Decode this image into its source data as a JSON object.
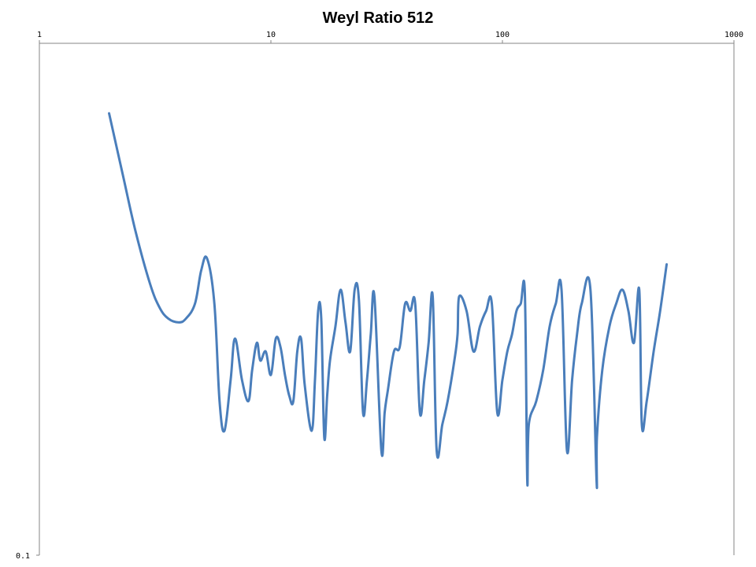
{
  "chart_data": {
    "type": "line",
    "title": "Weyl Ratio 512",
    "xscale": "log",
    "yscale": "log",
    "xlim": [
      1,
      1000
    ],
    "ylim": [
      0.1,
      1
    ],
    "x_ticks": [
      "1",
      "10",
      "100",
      "1000"
    ],
    "y_ticks": [
      "0.1"
    ],
    "x_axis_position": "top",
    "grid": false,
    "legend": "none",
    "series_color": "#4a7ebb",
    "series": [
      {
        "x": [
          2,
          2.3,
          2.6,
          3,
          3.3,
          3.6,
          4,
          4.3,
          4.7,
          5,
          5.3,
          5.7,
          6,
          6.3,
          6.7,
          7,
          7.5,
          8,
          8.3,
          8.7,
          9,
          9.5,
          10,
          10.5,
          11,
          11.5,
          12,
          12.5,
          13,
          13.5,
          14,
          15,
          15.5,
          16,
          16.5,
          17,
          17.5,
          18,
          19,
          20,
          21,
          22,
          23,
          24,
          25,
          26,
          27,
          28,
          30,
          31,
          32,
          34,
          36,
          38,
          40,
          42,
          44,
          46,
          48,
          50,
          52,
          55,
          58,
          62,
          64,
          65,
          70,
          75,
          80,
          85,
          90,
          95,
          100,
          105,
          110,
          115,
          120,
          125,
          128,
          130,
          140,
          150,
          160,
          170,
          180,
          190,
          200,
          210,
          220,
          240,
          255,
          256,
          270,
          290,
          310,
          330,
          350,
          370,
          390,
          400,
          420,
          450,
          480,
          512
        ],
        "y": [
          0.73,
          0.55,
          0.43,
          0.34,
          0.305,
          0.29,
          0.285,
          0.29,
          0.31,
          0.36,
          0.38,
          0.31,
          0.2,
          0.175,
          0.22,
          0.265,
          0.22,
          0.2,
          0.23,
          0.26,
          0.24,
          0.25,
          0.225,
          0.265,
          0.255,
          0.225,
          0.205,
          0.2,
          0.25,
          0.265,
          0.215,
          0.175,
          0.22,
          0.3,
          0.29,
          0.17,
          0.205,
          0.24,
          0.28,
          0.33,
          0.285,
          0.25,
          0.33,
          0.315,
          0.19,
          0.22,
          0.27,
          0.32,
          0.16,
          0.19,
          0.21,
          0.25,
          0.255,
          0.31,
          0.3,
          0.31,
          0.19,
          0.22,
          0.26,
          0.32,
          0.16,
          0.18,
          0.2,
          0.24,
          0.27,
          0.32,
          0.3,
          0.25,
          0.28,
          0.3,
          0.31,
          0.19,
          0.22,
          0.25,
          0.27,
          0.3,
          0.31,
          0.325,
          0.14,
          0.18,
          0.2,
          0.23,
          0.28,
          0.31,
          0.33,
          0.16,
          0.22,
          0.27,
          0.31,
          0.33,
          0.14,
          0.17,
          0.23,
          0.28,
          0.31,
          0.33,
          0.3,
          0.26,
          0.33,
          0.18,
          0.2,
          0.25,
          0.3,
          0.37
        ]
      }
    ]
  }
}
